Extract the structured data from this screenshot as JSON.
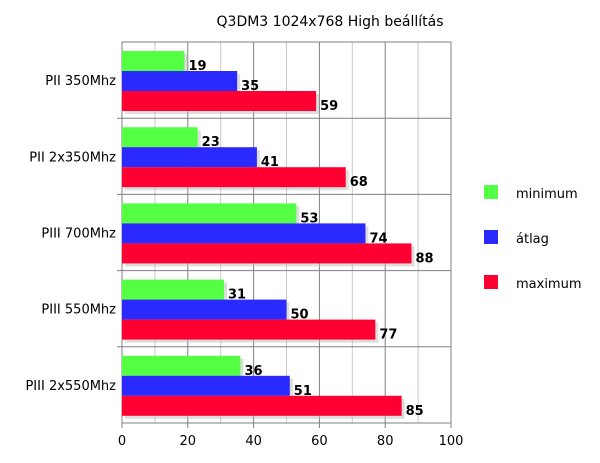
{
  "chart_data": {
    "type": "bar",
    "orientation": "horizontal",
    "title": "Q3DM3 1024x768 High beállítás",
    "categories": [
      "PII 350Mhz",
      "PII 2x350Mhz",
      "PIII 700Mhz",
      "PIII 550Mhz",
      "PIII 2x550Mhz"
    ],
    "series": [
      {
        "name": "minimum",
        "color": "#55ff44",
        "values": [
          19,
          23,
          53,
          31,
          36
        ]
      },
      {
        "name": "átlag",
        "color": "#2a2aff",
        "values": [
          35,
          41,
          74,
          50,
          51
        ]
      },
      {
        "name": "maximum",
        "color": "#ff0033",
        "values": [
          59,
          68,
          88,
          77,
          85
        ]
      }
    ],
    "xlim": [
      0,
      100
    ],
    "xticks": [
      0,
      20,
      40,
      60,
      80,
      100
    ],
    "grid": true,
    "legend": "right"
  }
}
